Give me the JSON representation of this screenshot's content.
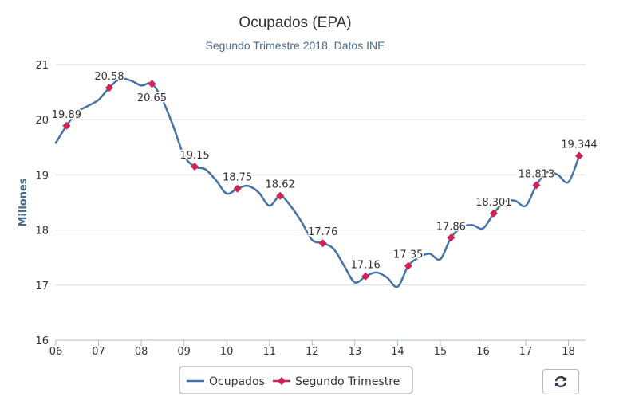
{
  "chart_data": {
    "type": "line",
    "title": "Ocupados (EPA)",
    "subtitle": "Segundo Trimestre 2018. Datos INE",
    "ylabel": "Millones",
    "ylim": [
      16,
      21
    ],
    "yticks": [
      16,
      17,
      18,
      19,
      20,
      21
    ],
    "xlim": [
      2006,
      2018.4
    ],
    "xticks": [
      {
        "value": 2006,
        "label": "06"
      },
      {
        "value": 2007,
        "label": "07"
      },
      {
        "value": 2008,
        "label": "08"
      },
      {
        "value": 2009,
        "label": "09"
      },
      {
        "value": 2010,
        "label": "10"
      },
      {
        "value": 2011,
        "label": "11"
      },
      {
        "value": 2012,
        "label": "12"
      },
      {
        "value": 2013,
        "label": "13"
      },
      {
        "value": 2014,
        "label": "14"
      },
      {
        "value": 2015,
        "label": "15"
      },
      {
        "value": 2016,
        "label": "16"
      },
      {
        "value": 2017,
        "label": "17"
      },
      {
        "value": 2018,
        "label": "18"
      }
    ],
    "grid": true,
    "legend_placement": "bottom-center",
    "series": [
      {
        "name": "Ocupados",
        "color": "#4572a7",
        "marker": "none",
        "points": [
          [
            2006.0,
            19.58
          ],
          [
            2006.25,
            19.89
          ],
          [
            2006.5,
            20.14
          ],
          [
            2006.75,
            20.25
          ],
          [
            2007.0,
            20.36
          ],
          [
            2007.25,
            20.58
          ],
          [
            2007.5,
            20.74
          ],
          [
            2007.75,
            20.71
          ],
          [
            2008.0,
            20.62
          ],
          [
            2008.25,
            20.65
          ],
          [
            2008.5,
            20.35
          ],
          [
            2008.75,
            19.88
          ],
          [
            2009.0,
            19.35
          ],
          [
            2009.25,
            19.15
          ],
          [
            2009.5,
            19.1
          ],
          [
            2009.75,
            18.9
          ],
          [
            2010.0,
            18.66
          ],
          [
            2010.25,
            18.75
          ],
          [
            2010.5,
            18.8
          ],
          [
            2010.75,
            18.68
          ],
          [
            2011.0,
            18.44
          ],
          [
            2011.25,
            18.62
          ],
          [
            2011.5,
            18.43
          ],
          [
            2011.75,
            18.15
          ],
          [
            2012.0,
            17.82
          ],
          [
            2012.25,
            17.76
          ],
          [
            2012.5,
            17.66
          ],
          [
            2012.75,
            17.35
          ],
          [
            2013.0,
            17.05
          ],
          [
            2013.25,
            17.16
          ],
          [
            2013.5,
            17.23
          ],
          [
            2013.75,
            17.14
          ],
          [
            2014.0,
            16.97
          ],
          [
            2014.25,
            17.35
          ],
          [
            2014.5,
            17.5
          ],
          [
            2014.75,
            17.57
          ],
          [
            2015.0,
            17.47
          ],
          [
            2015.25,
            17.86
          ],
          [
            2015.5,
            18.05
          ],
          [
            2015.75,
            18.09
          ],
          [
            2016.0,
            18.03
          ],
          [
            2016.25,
            18.301
          ],
          [
            2016.5,
            18.51
          ],
          [
            2016.75,
            18.53
          ],
          [
            2017.0,
            18.44
          ],
          [
            2017.25,
            18.813
          ],
          [
            2017.5,
            19.05
          ],
          [
            2017.75,
            19.0
          ],
          [
            2018.0,
            18.87
          ],
          [
            2018.25,
            19.344
          ]
        ]
      },
      {
        "name": "Segundo Trimestre",
        "color": "#d0214f",
        "marker": "diamond",
        "line": "none",
        "points": [
          {
            "x": 2006.25,
            "y": 19.89,
            "label": "19.89"
          },
          {
            "x": 2007.25,
            "y": 20.58,
            "label": "20.58"
          },
          {
            "x": 2008.25,
            "y": 20.65,
            "label": "20.65"
          },
          {
            "x": 2009.25,
            "y": 19.15,
            "label": "19.15"
          },
          {
            "x": 2010.25,
            "y": 18.75,
            "label": "18.75"
          },
          {
            "x": 2011.25,
            "y": 18.62,
            "label": "18.62"
          },
          {
            "x": 2012.25,
            "y": 17.76,
            "label": "17.76"
          },
          {
            "x": 2013.25,
            "y": 17.16,
            "label": "17.16"
          },
          {
            "x": 2014.25,
            "y": 17.35,
            "label": "17.35"
          },
          {
            "x": 2015.25,
            "y": 17.86,
            "label": "17.86"
          },
          {
            "x": 2016.25,
            "y": 18.301,
            "label": "18.301"
          },
          {
            "x": 2017.25,
            "y": 18.813,
            "label": "18.813"
          },
          {
            "x": 2018.25,
            "y": 19.344,
            "label": "19.344"
          }
        ]
      }
    ]
  },
  "controls": {
    "refresh_icon": "refresh-icon"
  }
}
